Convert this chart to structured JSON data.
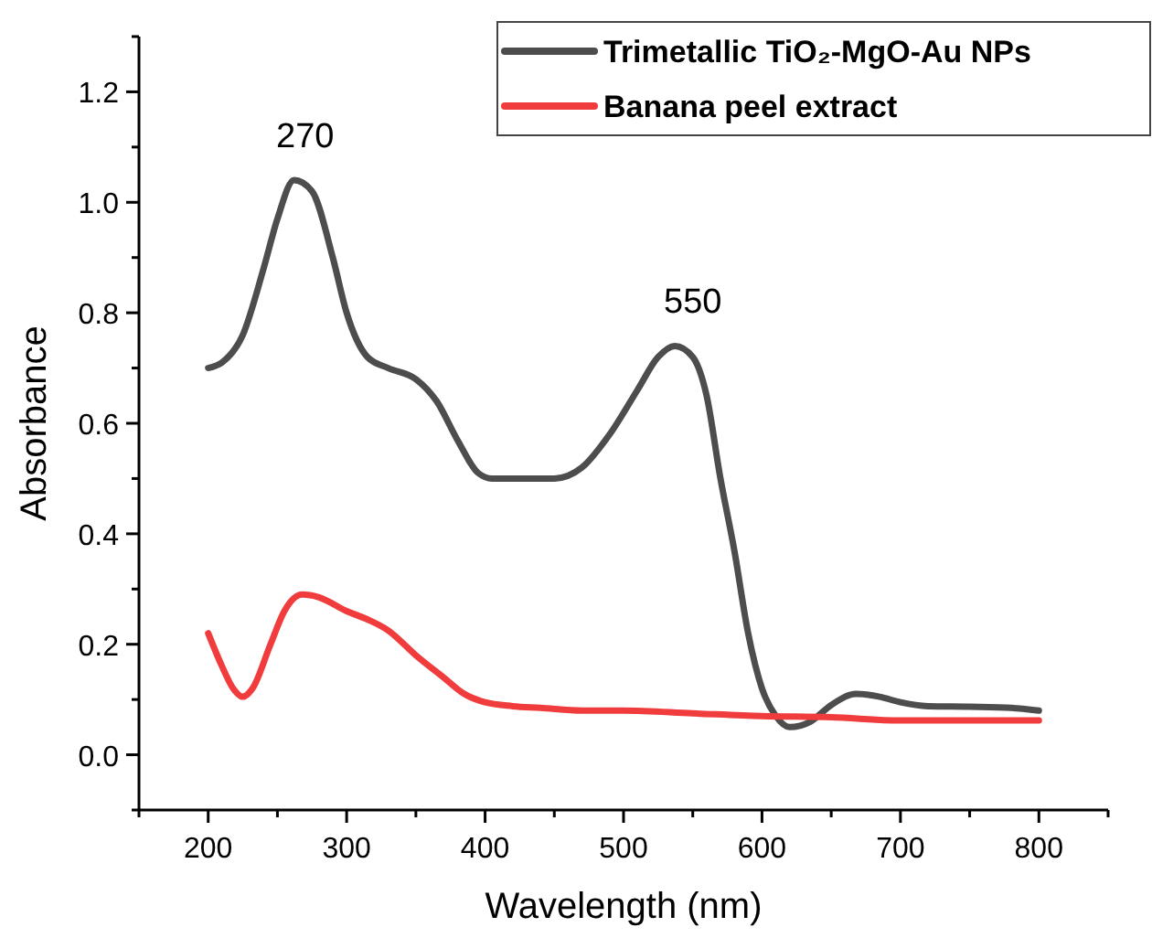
{
  "chart_data": {
    "type": "line",
    "xlabel": "Wavelength (nm)",
    "ylabel": "Absorbance",
    "xlim": [
      150,
      850
    ],
    "ylim": [
      -0.1,
      1.3
    ],
    "xticks": [
      {
        "value": 150,
        "label": null
      },
      200,
      {
        "value": 250,
        "label": null
      },
      300,
      {
        "value": 350,
        "label": null
      },
      400,
      {
        "value": 450,
        "label": null
      },
      500,
      {
        "value": 550,
        "label": null
      },
      600,
      {
        "value": 650,
        "label": null
      },
      700,
      {
        "value": 750,
        "label": null
      },
      800,
      {
        "value": 850,
        "label": null
      }
    ],
    "yticks": [
      {
        "value": -0.1,
        "label": null
      },
      {
        "value": 0,
        "label": "0.0"
      },
      {
        "value": 0.1,
        "label": null
      },
      {
        "value": 0.2,
        "label": "0.2"
      },
      {
        "value": 0.3,
        "label": null
      },
      {
        "value": 0.4,
        "label": "0.4"
      },
      {
        "value": 0.5,
        "label": null
      },
      {
        "value": 0.6,
        "label": "0.6"
      },
      {
        "value": 0.7,
        "label": null
      },
      {
        "value": 0.8,
        "label": "0.8"
      },
      {
        "value": 0.9,
        "label": null
      },
      {
        "value": 1.0,
        "label": "1.0"
      },
      {
        "value": 1.1,
        "label": null
      },
      {
        "value": 1.2,
        "label": "1.2"
      },
      {
        "value": 1.3,
        "label": null
      }
    ],
    "grid": false,
    "legend": "top right",
    "marker": "none",
    "line_style": "solid",
    "annotations": [
      {
        "text": "270",
        "x": 270,
        "y": 1.04
      },
      {
        "text": "550",
        "x": 550,
        "y": 0.74
      }
    ],
    "series": [
      {
        "name": "Trimetallic TiO₂-MgO-Au NPs",
        "color": "#4d4d4d",
        "x": [
          200,
          210,
          225,
          240,
          250,
          262,
          275,
          290,
          300,
          315,
          330,
          350,
          365,
          380,
          395,
          405,
          420,
          450,
          470,
          490,
          510,
          525,
          537,
          550,
          560,
          570,
          580,
          590,
          600,
          610,
          620,
          635,
          650,
          668,
          685,
          700,
          720,
          750,
          780,
          800
        ],
        "values": [
          0.7,
          0.71,
          0.76,
          0.88,
          0.97,
          1.04,
          1.02,
          0.9,
          0.8,
          0.72,
          0.7,
          0.68,
          0.64,
          0.57,
          0.51,
          0.5,
          0.5,
          0.5,
          0.52,
          0.58,
          0.66,
          0.72,
          0.74,
          0.72,
          0.65,
          0.5,
          0.37,
          0.22,
          0.12,
          0.07,
          0.05,
          0.06,
          0.09,
          0.11,
          0.105,
          0.095,
          0.088,
          0.087,
          0.085,
          0.08
        ]
      },
      {
        "name": "Banana peel extract",
        "color": "#f03c3c",
        "x": [
          200,
          210,
          218,
          225,
          232,
          245,
          255,
          268,
          280,
          300,
          315,
          330,
          350,
          370,
          385,
          400,
          420,
          440,
          470,
          500,
          550,
          600,
          650,
          700,
          750,
          800
        ],
        "values": [
          0.22,
          0.16,
          0.12,
          0.105,
          0.12,
          0.2,
          0.26,
          0.29,
          0.285,
          0.26,
          0.245,
          0.225,
          0.18,
          0.14,
          0.11,
          0.095,
          0.088,
          0.085,
          0.08,
          0.08,
          0.075,
          0.07,
          0.068,
          0.062,
          0.062,
          0.062
        ]
      }
    ]
  }
}
